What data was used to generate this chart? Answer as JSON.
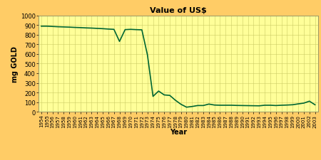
{
  "title": "Value of US$",
  "xlabel": "Year",
  "ylabel": "mg GOLD",
  "plot_bg_color": "#FFFF99",
  "fig_bg_color": "#FFCC66",
  "line_color": "#006633",
  "line_width": 1.2,
  "ylim": [
    0,
    1000
  ],
  "grid_color": "#CCCC66",
  "title_fontsize": 8,
  "label_fontsize": 7,
  "tick_fontsize": 5,
  "years": [
    1954,
    1955,
    1956,
    1957,
    1958,
    1959,
    1960,
    1961,
    1962,
    1963,
    1964,
    1965,
    1966,
    1967,
    1968,
    1969,
    1970,
    1971,
    1972,
    1973,
    1974,
    1975,
    1976,
    1977,
    1978,
    1979,
    1980,
    1981,
    1982,
    1983,
    1984,
    1985,
    1986,
    1987,
    1988,
    1989,
    1990,
    1991,
    1992,
    1993,
    1994,
    1995,
    1996,
    1997,
    1998,
    1999,
    2000,
    2001,
    2002,
    2003
  ],
  "values": [
    888,
    888,
    885,
    882,
    880,
    878,
    875,
    873,
    870,
    868,
    865,
    862,
    858,
    855,
    730,
    852,
    855,
    852,
    850,
    590,
    160,
    215,
    175,
    170,
    120,
    78,
    48,
    55,
    65,
    65,
    80,
    70,
    68,
    68,
    68,
    66,
    65,
    64,
    63,
    62,
    68,
    68,
    65,
    68,
    70,
    73,
    82,
    90,
    110,
    73
  ]
}
